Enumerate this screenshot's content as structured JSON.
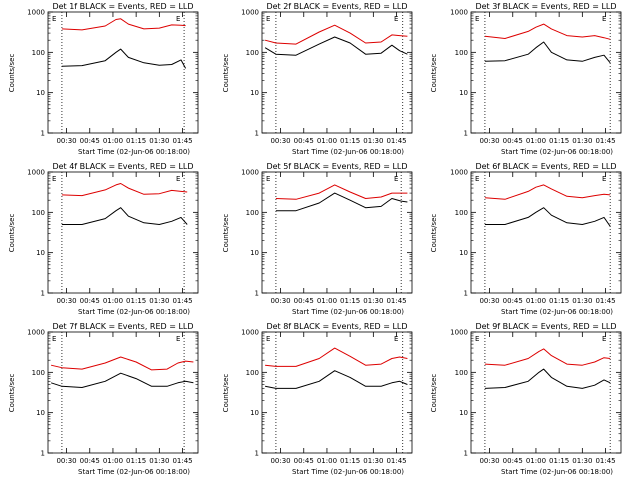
{
  "figure": {
    "panels": [
      {
        "title": "Det 1f BLACK = Events, RED = LLD",
        "xlabel": "Start Time (02-Jun-06 00:18:00)",
        "ylabel": "Counts/sec",
        "corner_labels": [
          "E",
          "E"
        ]
      },
      {
        "title": "Det 2f BLACK = Events, RED = LLD",
        "xlabel": "Start Time (02-Jun-06 00:18:00)",
        "ylabel": "Counts/sec",
        "corner_labels": [
          "E",
          "E"
        ]
      },
      {
        "title": "Det 3f BLACK = Events, RED = LLD",
        "xlabel": "Start Time (02-Jun-06 00:18:00)",
        "ylabel": "Counts/sec",
        "corner_labels": [
          "E",
          "E"
        ]
      },
      {
        "title": "Det 4f BLACK = Events, RED = LLD",
        "xlabel": "Start Time (02-Jun-06 00:18:00)",
        "ylabel": "Counts/sec",
        "corner_labels": [
          "E",
          "E"
        ]
      },
      {
        "title": "Det 5f BLACK = Events, RED = LLD",
        "xlabel": "Start Time (02-Jun-06 00:18:00)",
        "ylabel": "Counts/sec",
        "corner_labels": [
          "E",
          "E"
        ]
      },
      {
        "title": "Det 6f BLACK = Events, RED = LLD",
        "xlabel": "Start Time (02-Jun-06 00:18:00)",
        "ylabel": "Counts/sec",
        "corner_labels": [
          "E",
          "E"
        ]
      },
      {
        "title": "Det 7f BLACK = Events, RED = LLD",
        "xlabel": "Start Time (02-Jun-06 00:18:00)",
        "ylabel": "Counts/sec",
        "corner_labels": [
          "E",
          "E"
        ]
      },
      {
        "title": "Det 8f BLACK = Events, RED = LLD",
        "xlabel": "Start Time (02-Jun-06 00:18:00)",
        "ylabel": "Counts/sec",
        "corner_labels": [
          "E",
          "E"
        ]
      },
      {
        "title": "Det 9f BLACK = Events, RED = LLD",
        "xlabel": "Start Time (02-Jun-06 00:18:00)",
        "ylabel": "Counts/sec",
        "corner_labels": [
          "E",
          "E"
        ]
      }
    ]
  },
  "chart_data": [
    {
      "type": "line",
      "title": "Det 1f BLACK = Events, RED = LLD",
      "xlabel": "Start Time (02-Jun-06 00:18:00)",
      "ylabel": "Counts/sec",
      "y_scale": "log",
      "ylim": [
        1,
        1000
      ],
      "xlim": [
        "00:18",
        "01:55"
      ],
      "x_ticks": [
        "00:30",
        "00:45",
        "01:00",
        "01:15",
        "01:30",
        "01:45"
      ],
      "y_ticks": [
        "1",
        "10",
        "100",
        "1000"
      ],
      "markers": [
        "00:27",
        "01:46"
      ],
      "x": [
        "00:27",
        "00:40",
        "00:55",
        "01:02",
        "01:05",
        "01:10",
        "01:20",
        "01:30",
        "01:38",
        "01:44",
        "01:47"
      ],
      "series": [
        {
          "color": "#000000",
          "values": [
            45,
            47,
            62,
            100,
            120,
            75,
            55,
            48,
            50,
            65,
            40
          ]
        },
        {
          "color": "#dd0000",
          "values": [
            380,
            360,
            450,
            650,
            680,
            500,
            380,
            400,
            480,
            470,
            460
          ]
        }
      ],
      "grid": false
    },
    {
      "type": "line",
      "title": "Det 2f BLACK = Events, RED = LLD",
      "xlabel": "Start Time (02-Jun-06 00:18:00)",
      "ylabel": "Counts/sec",
      "y_scale": "log",
      "ylim": [
        1,
        1000
      ],
      "xlim": [
        "00:18",
        "01:55"
      ],
      "x_ticks": [
        "00:30",
        "00:45",
        "01:00",
        "01:15",
        "01:30",
        "01:45"
      ],
      "y_ticks": [
        "1",
        "10",
        "100",
        "1000"
      ],
      "markers": [
        "00:27",
        "01:49"
      ],
      "x": [
        "00:20",
        "00:27",
        "00:40",
        "00:55",
        "01:05",
        "01:15",
        "01:25",
        "01:35",
        "01:42",
        "01:47",
        "01:52"
      ],
      "series": [
        {
          "color": "#000000",
          "values": [
            130,
            90,
            85,
            160,
            240,
            170,
            90,
            95,
            150,
            110,
            90
          ]
        },
        {
          "color": "#dd0000",
          "values": [
            200,
            170,
            160,
            320,
            470,
            300,
            170,
            180,
            270,
            260,
            250
          ]
        }
      ],
      "grid": false
    },
    {
      "type": "line",
      "title": "Det 3f BLACK = Events, RED = LLD",
      "xlabel": "Start Time (02-Jun-06 00:18:00)",
      "ylabel": "Counts/sec",
      "y_scale": "log",
      "ylim": [
        1,
        1000
      ],
      "xlim": [
        "00:18",
        "01:55"
      ],
      "x_ticks": [
        "00:30",
        "00:45",
        "01:00",
        "01:15",
        "01:30",
        "01:45"
      ],
      "y_ticks": [
        "1",
        "10",
        "100",
        "1000"
      ],
      "markers": [
        "00:27",
        "01:48"
      ],
      "x": [
        "00:27",
        "00:40",
        "00:55",
        "01:00",
        "01:05",
        "01:10",
        "01:20",
        "01:30",
        "01:38",
        "01:44",
        "01:48"
      ],
      "series": [
        {
          "color": "#000000",
          "values": [
            60,
            62,
            90,
            130,
            180,
            100,
            65,
            60,
            75,
            85,
            55
          ]
        },
        {
          "color": "#dd0000",
          "values": [
            250,
            220,
            330,
            420,
            500,
            380,
            260,
            240,
            260,
            230,
            210
          ]
        }
      ],
      "grid": false
    },
    {
      "type": "line",
      "title": "Det 4f BLACK = Events, RED = LLD",
      "xlabel": "Start Time (02-Jun-06 00:18:00)",
      "ylabel": "Counts/sec",
      "y_scale": "log",
      "ylim": [
        1,
        1000
      ],
      "xlim": [
        "00:18",
        "01:55"
      ],
      "x_ticks": [
        "00:30",
        "00:45",
        "01:00",
        "01:15",
        "01:30",
        "01:45"
      ],
      "y_ticks": [
        "1",
        "10",
        "100",
        "1000"
      ],
      "markers": [
        "00:27",
        "01:46"
      ],
      "x": [
        "00:27",
        "00:40",
        "00:55",
        "01:02",
        "01:05",
        "01:10",
        "01:20",
        "01:30",
        "01:38",
        "01:44",
        "01:48"
      ],
      "series": [
        {
          "color": "#000000",
          "values": [
            50,
            50,
            70,
            110,
            130,
            80,
            55,
            50,
            60,
            75,
            50
          ]
        },
        {
          "color": "#dd0000",
          "values": [
            270,
            260,
            360,
            480,
            520,
            400,
            280,
            290,
            350,
            330,
            320
          ]
        }
      ],
      "grid": false
    },
    {
      "type": "line",
      "title": "Det 5f BLACK = Events, RED = LLD",
      "xlabel": "Start Time (02-Jun-06 00:18:00)",
      "ylabel": "Counts/sec",
      "y_scale": "log",
      "ylim": [
        1,
        1000
      ],
      "xlim": [
        "00:18",
        "01:55"
      ],
      "x_ticks": [
        "00:30",
        "00:45",
        "01:00",
        "01:15",
        "01:30",
        "01:45"
      ],
      "y_ticks": [
        "1",
        "10",
        "100",
        "1000"
      ],
      "markers": [
        "00:27",
        "01:48"
      ],
      "x": [
        "00:27",
        "00:40",
        "00:55",
        "01:05",
        "01:15",
        "01:25",
        "01:35",
        "01:42",
        "01:48",
        "01:52"
      ],
      "series": [
        {
          "color": "#000000",
          "values": [
            110,
            110,
            170,
            300,
            200,
            130,
            140,
            220,
            190,
            180
          ]
        },
        {
          "color": "#dd0000",
          "values": [
            220,
            210,
            300,
            480,
            320,
            220,
            240,
            300,
            300,
            300
          ]
        }
      ],
      "grid": false
    },
    {
      "type": "line",
      "title": "Det 6f BLACK = Events, RED = LLD",
      "xlabel": "Start Time (02-Jun-06 00:18:00)",
      "ylabel": "Counts/sec",
      "y_scale": "log",
      "ylim": [
        1,
        1000
      ],
      "xlim": [
        "00:18",
        "01:55"
      ],
      "x_ticks": [
        "00:30",
        "00:45",
        "01:00",
        "01:15",
        "01:30",
        "01:45"
      ],
      "y_ticks": [
        "1",
        "10",
        "100",
        "1000"
      ],
      "markers": [
        "00:27",
        "01:48"
      ],
      "x": [
        "00:27",
        "00:40",
        "00:55",
        "01:00",
        "01:05",
        "01:10",
        "01:20",
        "01:30",
        "01:38",
        "01:44",
        "01:48"
      ],
      "series": [
        {
          "color": "#000000",
          "values": [
            50,
            50,
            75,
            100,
            130,
            85,
            55,
            50,
            60,
            75,
            45
          ]
        },
        {
          "color": "#dd0000",
          "values": [
            230,
            210,
            330,
            420,
            480,
            380,
            250,
            230,
            260,
            280,
            270
          ]
        }
      ],
      "grid": false
    },
    {
      "type": "line",
      "title": "Det 7f BLACK = Events, RED = LLD",
      "xlabel": "Start Time (02-Jun-06 00:18:00)",
      "ylabel": "Counts/sec",
      "y_scale": "log",
      "ylim": [
        1,
        1000
      ],
      "xlim": [
        "00:18",
        "01:55"
      ],
      "x_ticks": [
        "00:30",
        "00:45",
        "01:00",
        "01:15",
        "01:30",
        "01:45"
      ],
      "y_ticks": [
        "1",
        "10",
        "100",
        "1000"
      ],
      "markers": [
        "00:27",
        "01:46"
      ],
      "x": [
        "00:20",
        "00:27",
        "00:40",
        "00:55",
        "01:05",
        "01:15",
        "01:25",
        "01:35",
        "01:42",
        "01:47",
        "01:52"
      ],
      "series": [
        {
          "color": "#000000",
          "values": [
            55,
            45,
            42,
            60,
            95,
            70,
            45,
            45,
            55,
            60,
            55
          ]
        },
        {
          "color": "#dd0000",
          "values": [
            150,
            130,
            120,
            170,
            240,
            180,
            115,
            120,
            170,
            190,
            180
          ]
        }
      ],
      "grid": false
    },
    {
      "type": "line",
      "title": "Det 8f BLACK = Events, RED = LLD",
      "xlabel": "Start Time (02-Jun-06 00:18:00)",
      "ylabel": "Counts/sec",
      "y_scale": "log",
      "ylim": [
        1,
        1000
      ],
      "xlim": [
        "00:18",
        "01:55"
      ],
      "x_ticks": [
        "00:30",
        "00:45",
        "01:00",
        "01:15",
        "01:30",
        "01:45"
      ],
      "y_ticks": [
        "1",
        "10",
        "100",
        "1000"
      ],
      "markers": [
        "00:27",
        "01:49"
      ],
      "x": [
        "00:20",
        "00:27",
        "00:40",
        "00:55",
        "01:05",
        "01:15",
        "01:25",
        "01:35",
        "01:42",
        "01:47",
        "01:52"
      ],
      "series": [
        {
          "color": "#000000",
          "values": [
            45,
            40,
            40,
            60,
            110,
            75,
            45,
            45,
            55,
            60,
            50
          ]
        },
        {
          "color": "#dd0000",
          "values": [
            150,
            140,
            140,
            220,
            400,
            250,
            150,
            160,
            220,
            240,
            220
          ]
        }
      ],
      "grid": false
    },
    {
      "type": "line",
      "title": "Det 9f BLACK = Events, RED = LLD",
      "xlabel": "Start Time (02-Jun-06 00:18:00)",
      "ylabel": "Counts/sec",
      "y_scale": "log",
      "ylim": [
        1,
        1000
      ],
      "xlim": [
        "00:18",
        "01:55"
      ],
      "x_ticks": [
        "00:30",
        "00:45",
        "01:00",
        "01:15",
        "01:30",
        "01:45"
      ],
      "y_ticks": [
        "1",
        "10",
        "100",
        "1000"
      ],
      "markers": [
        "00:27",
        "01:48"
      ],
      "x": [
        "00:27",
        "00:40",
        "00:55",
        "01:02",
        "01:05",
        "01:10",
        "01:20",
        "01:30",
        "01:38",
        "01:44",
        "01:48"
      ],
      "series": [
        {
          "color": "#000000",
          "values": [
            40,
            42,
            60,
            100,
            120,
            75,
            45,
            40,
            48,
            65,
            55
          ]
        },
        {
          "color": "#dd0000",
          "values": [
            160,
            150,
            220,
            330,
            380,
            260,
            160,
            150,
            180,
            230,
            220
          ]
        }
      ],
      "grid": false
    }
  ]
}
